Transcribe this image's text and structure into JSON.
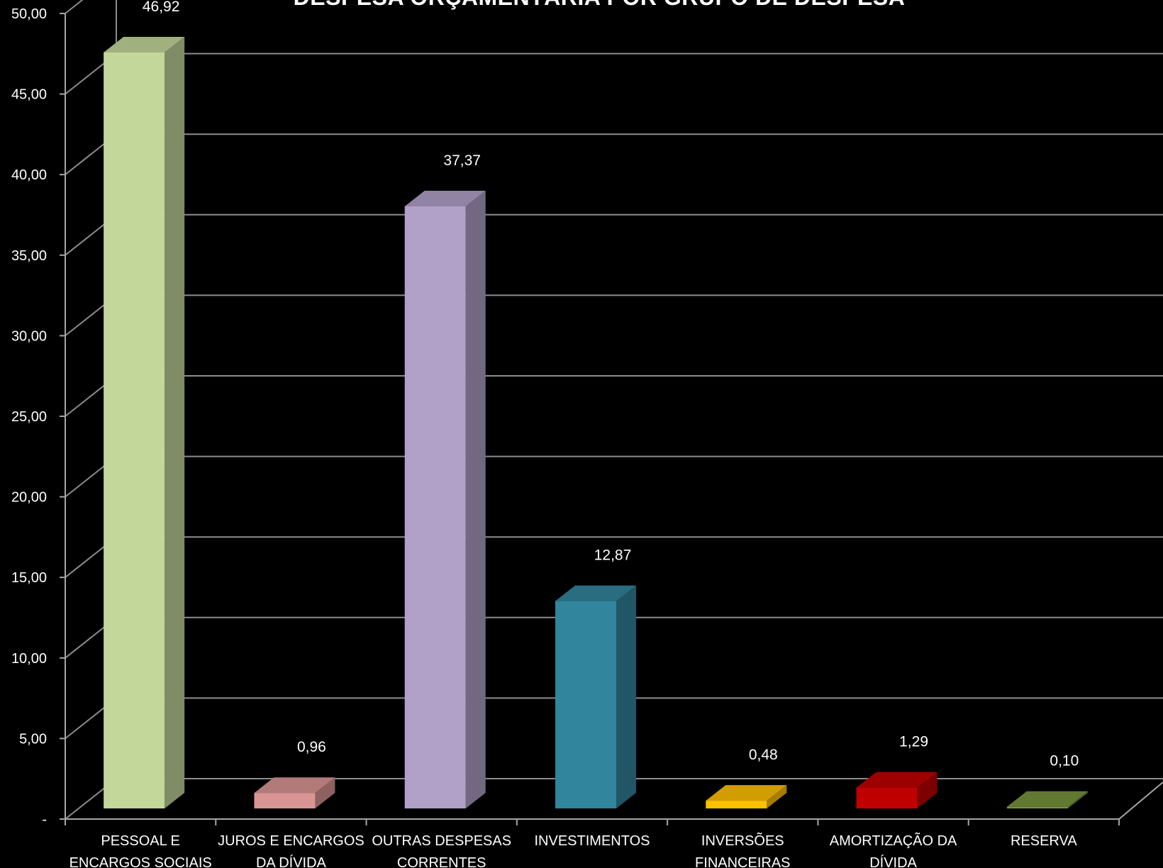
{
  "chart_data": {
    "type": "bar",
    "title": "DESPESA ORÇAMENTÁRIA POR GRUPO DE DESPESA",
    "xlabel": "",
    "ylabel": "",
    "ylim": [
      0,
      50
    ],
    "y_ticks": [
      {
        "value": 0,
        "label": "-"
      },
      {
        "value": 5,
        "label": "5,00"
      },
      {
        "value": 10,
        "label": "10,00"
      },
      {
        "value": 15,
        "label": "15,00"
      },
      {
        "value": 20,
        "label": "20,00"
      },
      {
        "value": 25,
        "label": "25,00"
      },
      {
        "value": 30,
        "label": "30,00"
      },
      {
        "value": 35,
        "label": "35,00"
      },
      {
        "value": 40,
        "label": "40,00"
      },
      {
        "value": 45,
        "label": "45,00"
      },
      {
        "value": 50,
        "label": "50,00"
      }
    ],
    "grid": true,
    "legend": "none",
    "three_d": true,
    "categories": [
      [
        "PESSOAL E",
        "ENCARGOS SOCIAIS"
      ],
      [
        "JUROS E ENCARGOS",
        "DA DÍVIDA"
      ],
      [
        "OUTRAS DESPESAS",
        "CORRENTES"
      ],
      [
        "INVESTIMENTOS"
      ],
      [
        "INVERSÕES",
        "FINANCEIRAS"
      ],
      [
        "AMORTIZAÇÃO DA",
        "DÍVIDA"
      ],
      [
        "RESERVA"
      ]
    ],
    "values": [
      46.92,
      0.96,
      37.37,
      12.87,
      0.48,
      1.29,
      0.1
    ],
    "value_labels": [
      "46,92",
      "0,96",
      "37,37",
      "12,87",
      "0,48",
      "1,29",
      "0,10"
    ],
    "colors": [
      "#c4d79b",
      "#d99594",
      "#b1a0c7",
      "#31859c",
      "#ffc000",
      "#c00000",
      "#77933c"
    ]
  }
}
